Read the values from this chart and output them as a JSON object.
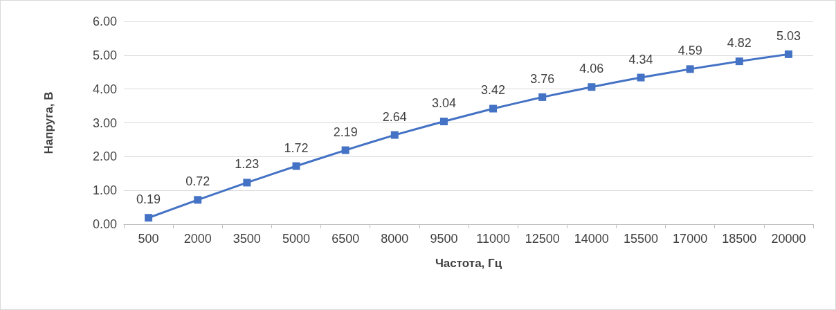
{
  "chart_data": {
    "type": "line",
    "xlabel": "Частота, Гц",
    "ylabel": "Напруга, В",
    "categories": [
      "500",
      "2000",
      "3500",
      "5000",
      "6500",
      "8000",
      "9500",
      "11000",
      "12500",
      "14000",
      "15500",
      "17000",
      "18500",
      "20000"
    ],
    "series": [
      {
        "color": "#4472c4",
        "values": [
          0.19,
          0.72,
          1.23,
          1.72,
          2.19,
          2.64,
          3.04,
          3.42,
          3.76,
          4.06,
          4.34,
          4.59,
          4.82,
          5.03
        ]
      }
    ],
    "ylim": [
      0,
      6
    ],
    "yticks": [
      {
        "value": 0,
        "label": "0.00"
      },
      {
        "value": 1,
        "label": "1.00"
      },
      {
        "value": 2,
        "label": "2.00"
      },
      {
        "value": 3,
        "label": "3.00"
      },
      {
        "value": 4,
        "label": "4.00"
      },
      {
        "value": 5,
        "label": "5.00"
      },
      {
        "value": 6,
        "label": "6.00"
      }
    ],
    "grid": "y",
    "marker": "square",
    "line_style": "solid",
    "data_labels": true
  }
}
